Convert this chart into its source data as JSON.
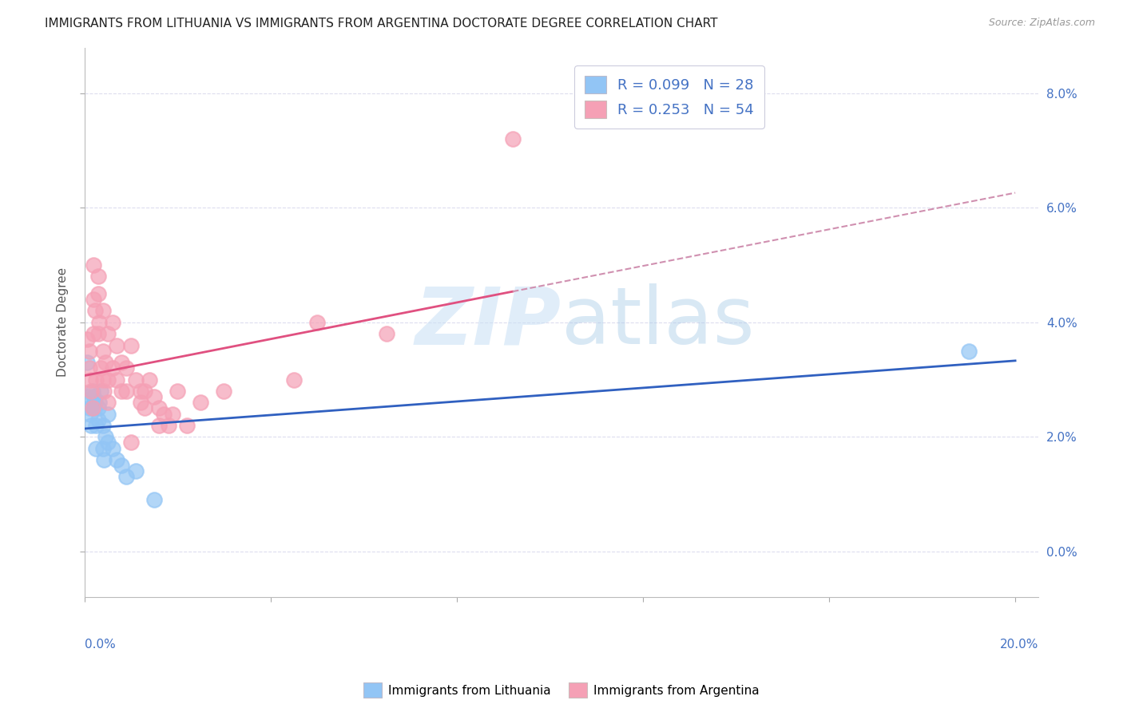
{
  "title": "IMMIGRANTS FROM LITHUANIA VS IMMIGRANTS FROM ARGENTINA DOCTORATE DEGREE CORRELATION CHART",
  "source": "Source: ZipAtlas.com",
  "ylabel": "Doctorate Degree",
  "xlim": [
    0.0,
    0.205
  ],
  "ylim": [
    -0.008,
    0.088
  ],
  "color_blue": "#92C5F5",
  "color_pink": "#F5A0B5",
  "trendline_blue_color": "#3060C0",
  "trendline_pink_color": "#E05080",
  "trendline_pink_dashed_color": "#D090B0",
  "background_color": "#FFFFFF",
  "grid_color": "#DDDDEE",
  "title_color": "#222222",
  "axis_label_color": "#4472C4",
  "legend1_label": "R = 0.099   N = 28",
  "legend2_label": "R = 0.253   N = 54",
  "yticks": [
    0.0,
    0.02,
    0.04,
    0.06,
    0.08
  ],
  "xticks": [
    0.0,
    0.04,
    0.08,
    0.12,
    0.16,
    0.2
  ],
  "lith_x": [
    0.0005,
    0.0008,
    0.001,
    0.0012,
    0.0015,
    0.0018,
    0.002,
    0.002,
    0.0022,
    0.0025,
    0.0025,
    0.003,
    0.003,
    0.0032,
    0.0035,
    0.004,
    0.004,
    0.0042,
    0.0045,
    0.005,
    0.005,
    0.006,
    0.007,
    0.008,
    0.009,
    0.011,
    0.015,
    0.19
  ],
  "lith_y": [
    0.033,
    0.027,
    0.025,
    0.024,
    0.022,
    0.028,
    0.027,
    0.025,
    0.026,
    0.022,
    0.018,
    0.025,
    0.023,
    0.026,
    0.028,
    0.022,
    0.018,
    0.016,
    0.02,
    0.019,
    0.024,
    0.018,
    0.016,
    0.015,
    0.013,
    0.014,
    0.009,
    0.035
  ],
  "arg_x": [
    0.0005,
    0.001,
    0.001,
    0.0012,
    0.0015,
    0.0018,
    0.002,
    0.002,
    0.002,
    0.0022,
    0.0025,
    0.003,
    0.003,
    0.003,
    0.0032,
    0.0035,
    0.004,
    0.004,
    0.004,
    0.0042,
    0.0045,
    0.005,
    0.005,
    0.005,
    0.006,
    0.006,
    0.007,
    0.007,
    0.008,
    0.008,
    0.009,
    0.009,
    0.01,
    0.01,
    0.011,
    0.012,
    0.012,
    0.013,
    0.013,
    0.014,
    0.015,
    0.016,
    0.016,
    0.017,
    0.018,
    0.019,
    0.02,
    0.022,
    0.025,
    0.03,
    0.045,
    0.05,
    0.065,
    0.092
  ],
  "arg_y": [
    0.037,
    0.035,
    0.032,
    0.03,
    0.028,
    0.025,
    0.05,
    0.044,
    0.038,
    0.042,
    0.03,
    0.048,
    0.045,
    0.038,
    0.04,
    0.032,
    0.042,
    0.035,
    0.03,
    0.028,
    0.033,
    0.038,
    0.03,
    0.026,
    0.04,
    0.032,
    0.036,
    0.03,
    0.033,
    0.028,
    0.032,
    0.028,
    0.036,
    0.019,
    0.03,
    0.028,
    0.026,
    0.028,
    0.025,
    0.03,
    0.027,
    0.025,
    0.022,
    0.024,
    0.022,
    0.024,
    0.028,
    0.022,
    0.026,
    0.028,
    0.03,
    0.04,
    0.038,
    0.072
  ]
}
